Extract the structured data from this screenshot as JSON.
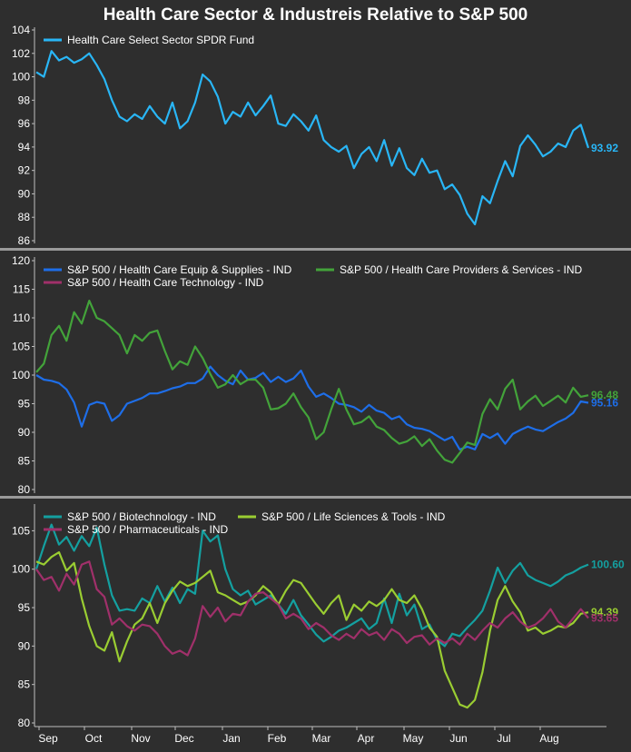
{
  "title": "Health Care Sector & Industreis Relative to S&P 500",
  "chart_data": [
    {
      "type": "line",
      "x_labels": [
        "Sep",
        "Oct",
        "Nov",
        "Dec",
        "Jan",
        "Feb",
        "Mar",
        "Apr",
        "May",
        "Jun",
        "Jul",
        "Aug"
      ],
      "ylim": [
        86,
        104
      ],
      "yticks": [
        86,
        88,
        90,
        92,
        94,
        96,
        98,
        100,
        102,
        104
      ],
      "series": [
        {
          "name": "Health Care Select Sector SPDR Fund",
          "color": "#29b6f6",
          "end_label": "93.92",
          "values": [
            100.4,
            100.0,
            102.2,
            101.4,
            101.7,
            101.2,
            101.5,
            102.0,
            101.0,
            99.8,
            98.0,
            96.6,
            96.2,
            96.8,
            96.4,
            97.5,
            96.6,
            96.0,
            97.8,
            95.6,
            96.2,
            97.8,
            100.2,
            99.6,
            98.3,
            96.0,
            97.0,
            96.6,
            97.8,
            96.7,
            97.5,
            98.4,
            96.0,
            95.8,
            96.8,
            96.2,
            95.4,
            96.7,
            94.6,
            94.0,
            93.6,
            94.1,
            92.2,
            93.4,
            94.0,
            92.8,
            94.6,
            92.4,
            93.9,
            92.2,
            91.6,
            93.0,
            91.8,
            92.0,
            90.4,
            90.8,
            89.9,
            88.3,
            87.4,
            89.8,
            89.2,
            91.1,
            92.8,
            91.5,
            94.1,
            95.0,
            94.2,
            93.2,
            93.6,
            94.3,
            94.0,
            95.4,
            95.9,
            93.92
          ]
        }
      ]
    },
    {
      "type": "line",
      "x_labels": [
        "Sep",
        "Oct",
        "Nov",
        "Dec",
        "Jan",
        "Feb",
        "Mar",
        "Apr",
        "May",
        "Jun",
        "Jul",
        "Aug"
      ],
      "ylim": [
        80,
        120
      ],
      "yticks": [
        80,
        85,
        90,
        95,
        100,
        105,
        110,
        115,
        120
      ],
      "series": [
        {
          "name": "S&P 500 / Health Care Equip & Supplies - IND",
          "color": "#1e6ee8",
          "end_label": "95.16",
          "values": [
            100.0,
            99.2,
            99.0,
            98.6,
            97.5,
            95.2,
            91.0,
            94.8,
            95.3,
            95.0,
            92.0,
            93.0,
            95.0,
            95.5,
            96.0,
            96.8,
            96.8,
            97.2,
            97.7,
            98.0,
            98.6,
            98.6,
            99.4,
            101.5,
            100.0,
            99.0,
            98.4,
            100.8,
            99.2,
            99.5,
            100.4,
            98.8,
            99.7,
            98.8,
            99.4,
            100.8,
            98.0,
            96.2,
            96.8,
            96.0,
            95.0,
            94.8,
            94.4,
            93.6,
            94.8,
            93.8,
            93.4,
            92.3,
            92.8,
            91.4,
            90.8,
            90.6,
            90.2,
            89.4,
            88.6,
            89.2,
            87.0,
            87.5,
            87.0,
            89.7,
            89.0,
            89.8,
            88.0,
            89.7,
            90.4,
            91.0,
            90.5,
            90.2,
            91.0,
            91.8,
            92.4,
            93.4,
            95.4,
            95.16
          ]
        },
        {
          "name": "S&P 500 / Health Care Providers & Services - IND",
          "color": "#43a33a",
          "end_label": "96.48",
          "values": [
            100.5,
            102.0,
            107.0,
            108.6,
            106.0,
            111.0,
            109.0,
            113.0,
            110.0,
            109.4,
            108.2,
            107.0,
            103.8,
            107.0,
            106.0,
            107.4,
            107.8,
            104.2,
            101.0,
            102.4,
            101.8,
            105.0,
            103.0,
            100.2,
            97.8,
            98.4,
            100.0,
            98.4,
            99.2,
            99.2,
            97.8,
            94.0,
            94.2,
            95.0,
            96.8,
            94.4,
            92.6,
            88.8,
            90.0,
            94.0,
            97.6,
            94.0,
            91.4,
            91.8,
            92.8,
            91.0,
            90.4,
            89.0,
            88.0,
            88.4,
            89.3,
            87.6,
            88.8,
            86.8,
            85.2,
            84.7,
            86.4,
            88.2,
            87.8,
            93.2,
            95.8,
            94.0,
            97.6,
            99.2,
            94.0,
            95.4,
            96.4,
            94.6,
            95.5,
            96.4,
            95.2,
            97.8,
            96.2,
            96.48
          ]
        },
        {
          "name": "S&P 500 / Health Care Technology - IND",
          "color": "#a0306a",
          "values": []
        }
      ]
    },
    {
      "type": "line",
      "x_labels": [
        "Sep",
        "Oct",
        "Nov",
        "Dec",
        "Jan",
        "Feb",
        "Mar",
        "Apr",
        "May",
        "Jun",
        "Jul",
        "Aug"
      ],
      "ylim": [
        80,
        108
      ],
      "yticks": [
        80,
        85,
        90,
        95,
        100,
        105
      ],
      "series": [
        {
          "name": "S&P 500 / Biotechnology - IND",
          "color": "#14a0a0",
          "end_label": "100.60",
          "values": [
            100.0,
            103.0,
            105.8,
            103.2,
            104.2,
            102.4,
            104.3,
            103.0,
            105.4,
            100.6,
            96.6,
            94.6,
            94.8,
            94.6,
            96.2,
            95.6,
            97.8,
            95.8,
            97.6,
            95.6,
            97.4,
            96.8,
            105.0,
            103.6,
            104.4,
            100.0,
            97.4,
            96.6,
            97.2,
            95.4,
            96.0,
            96.6,
            95.4,
            94.2,
            96.0,
            94.0,
            92.8,
            91.5,
            90.6,
            91.2,
            92.0,
            92.4,
            93.0,
            93.6,
            92.2,
            93.0,
            96.2,
            93.0,
            96.8,
            94.0,
            95.4,
            92.2,
            92.8,
            90.8,
            90.0,
            91.6,
            91.3,
            92.4,
            93.4,
            94.6,
            97.2,
            100.2,
            98.2,
            99.8,
            100.8,
            99.2,
            98.6,
            98.2,
            97.8,
            98.4,
            99.2,
            99.6,
            100.2,
            100.6
          ]
        },
        {
          "name": "S&P 500 / Life Sciences & Tools - IND",
          "color": "#9acd32",
          "end_label": "94.39",
          "values": [
            101.0,
            100.6,
            101.6,
            102.2,
            99.8,
            100.8,
            96.2,
            92.6,
            90.0,
            89.4,
            91.8,
            88.0,
            90.6,
            92.8,
            93.6,
            95.6,
            93.0,
            95.6,
            97.2,
            98.4,
            97.8,
            98.2,
            99.0,
            99.8,
            97.0,
            96.6,
            96.0,
            95.4,
            95.8,
            96.6,
            97.8,
            97.0,
            95.4,
            97.2,
            98.6,
            98.2,
            96.8,
            95.4,
            94.2,
            95.6,
            96.6,
            93.4,
            95.4,
            94.6,
            95.8,
            95.2,
            96.0,
            97.4,
            96.0,
            95.6,
            96.6,
            94.8,
            92.4,
            91.2,
            86.8,
            84.6,
            82.4,
            82.0,
            83.0,
            86.6,
            92.0,
            96.0,
            97.8,
            95.8,
            94.4,
            92.0,
            92.4,
            91.6,
            92.0,
            92.6,
            92.4,
            93.0,
            94.2,
            94.39
          ]
        },
        {
          "name": "S&P 500 / Pharmaceuticals - IND",
          "color": "#a0306a",
          "end_label": "93.65",
          "values": [
            100.0,
            98.6,
            99.0,
            97.2,
            99.4,
            98.0,
            100.6,
            101.0,
            97.4,
            96.4,
            92.8,
            93.6,
            92.6,
            92.0,
            92.8,
            92.6,
            91.6,
            90.0,
            89.0,
            89.4,
            88.8,
            91.0,
            95.2,
            93.8,
            95.0,
            93.2,
            94.2,
            94.0,
            95.8,
            96.8,
            97.0,
            96.2,
            95.4,
            93.6,
            94.2,
            93.6,
            92.2,
            93.0,
            92.4,
            91.4,
            90.8,
            91.6,
            91.0,
            92.2,
            91.4,
            91.8,
            90.8,
            92.2,
            91.6,
            90.4,
            91.2,
            91.4,
            90.2,
            91.0,
            90.4,
            91.0,
            90.2,
            91.6,
            90.8,
            92.0,
            93.0,
            92.4,
            93.6,
            94.4,
            93.2,
            92.4,
            92.8,
            93.6,
            94.8,
            93.2,
            92.4,
            93.6,
            94.8,
            93.65
          ]
        }
      ]
    }
  ]
}
